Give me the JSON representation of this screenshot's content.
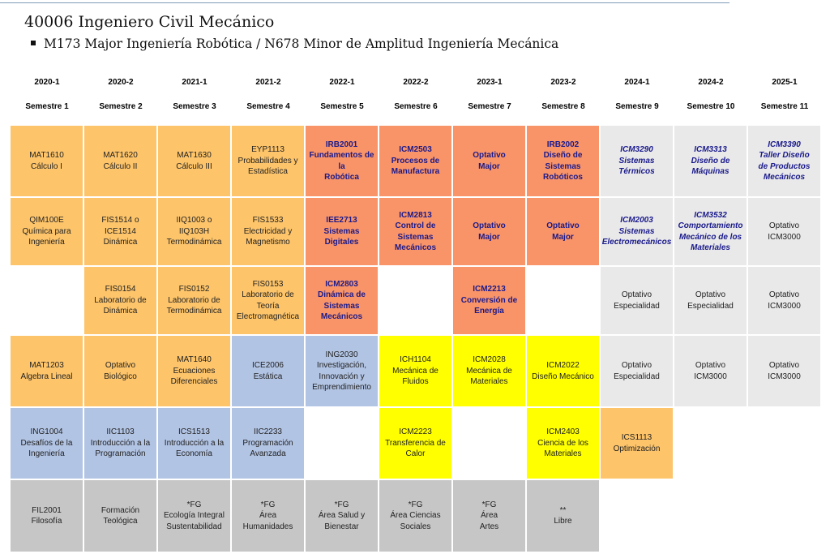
{
  "header": {
    "title": "40006 Ingeniero Civil Mecánico",
    "subtitle": "M173 Major Ingeniería Robótica / N678 Minor de Amplitud Ingeniería Mecánica"
  },
  "columns": [
    {
      "year": "2020-1",
      "semester": "Semestre 1"
    },
    {
      "year": "2020-2",
      "semester": "Semestre 2"
    },
    {
      "year": "2021-1",
      "semester": "Semestre 3"
    },
    {
      "year": "2021-2",
      "semester": "Semestre 4"
    },
    {
      "year": "2022-1",
      "semester": "Semestre 5"
    },
    {
      "year": "2022-2",
      "semester": "Semestre 6"
    },
    {
      "year": "2023-1",
      "semester": "Semestre 7"
    },
    {
      "year": "2023-2",
      "semester": "Semestre 8"
    },
    {
      "year": "2024-1",
      "semester": "Semestre 9"
    },
    {
      "year": "2024-2",
      "semester": "Semestre 10"
    },
    {
      "year": "2025-1",
      "semester": "Semestre 11"
    }
  ],
  "courses": [
    {
      "text": "MAT1610\nCálculo I",
      "category": "orange"
    },
    {
      "text": "MAT1620\nCálculo II",
      "category": "orange"
    },
    {
      "text": "MAT1630\nCálculo III",
      "category": "orange"
    },
    {
      "text": "EYP1113\nProbabilidades y\nEstadística",
      "category": "orange"
    },
    {
      "text": "IRB2001\nFundamentos de la\nRobótica",
      "category": "coral"
    },
    {
      "text": "ICM2503\nProcesos de\nManufactura",
      "category": "coral"
    },
    {
      "text": "Optativo\nMajor",
      "category": "coral"
    },
    {
      "text": "IRB2002\nDiseño de\nSistemas\nRobóticos",
      "category": "coral"
    },
    {
      "text": "ICM3290\nSistemas\nTérmicos",
      "category": "lgray-it"
    },
    {
      "text": "ICM3313\nDiseño de\nMáquinas",
      "category": "lgray-it"
    },
    {
      "text": "ICM3390\nTaller Diseño\nde Productos\nMecánicos",
      "category": "lgray-it"
    },
    {
      "text": "QIM100E\nQuímica para\nIngeniería",
      "category": "orange"
    },
    {
      "text": "FIS1514 o\nICE1514\nDinámica",
      "category": "orange"
    },
    {
      "text": "IIQ1003 o\nIIQ103H\nTermodinámica",
      "category": "orange"
    },
    {
      "text": "FIS1533\nElectricidad y\nMagnetismo",
      "category": "orange"
    },
    {
      "text": "IEE2713\nSistemas\nDigitales",
      "category": "coral"
    },
    {
      "text": "ICM2813\nControl de\nSistemas\nMecánicos",
      "category": "coral"
    },
    {
      "text": "Optativo\nMajor",
      "category": "coral"
    },
    {
      "text": "Optativo\nMajor",
      "category": "coral"
    },
    {
      "text": "ICM2003\nSistemas\nElectromecánicos",
      "category": "lgray-it"
    },
    {
      "text": "ICM3532\nComportamiento\nMecánico de los\nMateriales",
      "category": "lgray-it"
    },
    {
      "text": "Optativo\nICM3000",
      "category": "lgray"
    },
    {
      "text": "FIS0154\nLaboratorio de\nDinámica",
      "category": "orange"
    },
    {
      "text": "FIS0152\nLaboratorio de\nTermodinámica",
      "category": "orange"
    },
    {
      "text": "FIS0153\nLaboratorio de\nTeoría\nElectromagnética",
      "category": "orange"
    },
    {
      "text": "ICM2803\nDinámica de\nSistemas\nMecánicos",
      "category": "coral"
    },
    {
      "text": "ICM2213\nConversión de\nEnergía",
      "category": "coral"
    },
    {
      "text": "Optativo\nEspecialidad",
      "category": "lgray"
    },
    {
      "text": "Optativo\nEspecialidad",
      "category": "lgray"
    },
    {
      "text": "Optativo\nICM3000",
      "category": "lgray"
    },
    {
      "text": "MAT1203\nAlgebra Lineal",
      "category": "orange"
    },
    {
      "text": "Optativo\nBiológico",
      "category": "orange"
    },
    {
      "text": "MAT1640\nEcuaciones\nDiferenciales",
      "category": "orange"
    },
    {
      "text": "ICE2006\nEstática",
      "category": "blue"
    },
    {
      "text": "ING2030\nInvestigación,\nInnovación y\nEmprendimiento",
      "category": "blue"
    },
    {
      "text": "ICH1104\nMecánica de\nFluidos",
      "category": "yellow"
    },
    {
      "text": "ICM2028\nMecánica de\nMateriales",
      "category": "yellow"
    },
    {
      "text": "ICM2022\nDiseño Mecánico",
      "category": "yellow"
    },
    {
      "text": "Optativo\nEspecialidad",
      "category": "lgray"
    },
    {
      "text": "Optativo\nICM3000",
      "category": "lgray"
    },
    {
      "text": "Optativo\nICM3000",
      "category": "lgray"
    },
    {
      "text": "ING1004\nDesafíos de la\nIngeniería",
      "category": "blue"
    },
    {
      "text": "IIC1103\nIntroducción a la\nProgramación",
      "category": "blue"
    },
    {
      "text": "ICS1513\nIntroducción a la\nEconomía",
      "category": "blue"
    },
    {
      "text": "IIC2233\nProgramación\nAvanzada",
      "category": "blue"
    },
    {
      "text": "ICM2223\nTransferencia de\nCalor",
      "category": "yellow"
    },
    {
      "text": "ICM2403\nCiencia de los\nMateriales",
      "category": "yellow"
    },
    {
      "text": "ICS1113\nOptimización",
      "category": "orange"
    },
    {
      "text": "FIL2001\nFilosofía",
      "category": "gray"
    },
    {
      "text": "Formación\nTeológica",
      "category": "gray"
    },
    {
      "text": "*FG\nEcología Integral\nSustentabilidad",
      "category": "gray"
    },
    {
      "text": "*FG\nÁrea\nHumanidades",
      "category": "gray"
    },
    {
      "text": "*FG\nÁrea Salud y\nBienestar",
      "category": "gray"
    },
    {
      "text": "*FG\nÁrea Ciencias\nSociales",
      "category": "gray"
    },
    {
      "text": "*FG\nÁrea\nArtes",
      "category": "gray"
    },
    {
      "text": "**\nLibre",
      "category": "gray"
    }
  ]
}
